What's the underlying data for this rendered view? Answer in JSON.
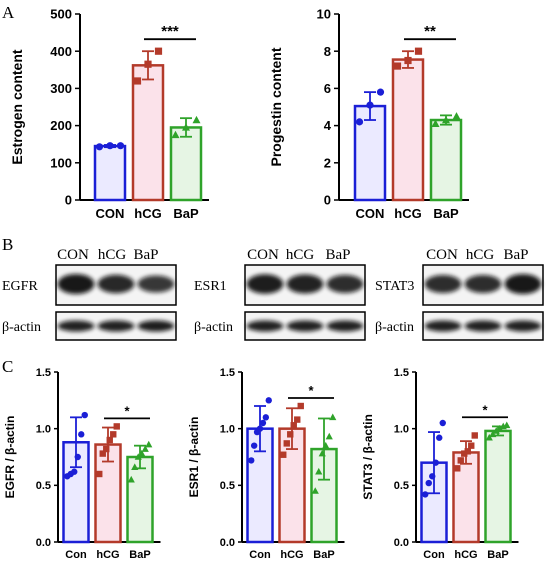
{
  "panel_labels": {
    "a": "A",
    "b": "B",
    "c": "C"
  },
  "colors": {
    "con": "#1b1fd6",
    "hcg": "#b33a2a",
    "bap": "#2fa32a",
    "con_fill": "#ebeaff",
    "hcg_fill": "#fbe2ea",
    "bap_fill": "#e6f5e4"
  },
  "chart_data": [
    {
      "id": "estrogen",
      "type": "bar",
      "categories": [
        "CON",
        "hCG",
        "BaP"
      ],
      "values": [
        145,
        362,
        195
      ],
      "errors": [
        3,
        38,
        25
      ],
      "points": [
        [
          143,
          146,
          146
        ],
        [
          320,
          365,
          400
        ],
        [
          175,
          195,
          215
        ]
      ],
      "ylabel": "Estrogen content",
      "yticks": [
        0,
        100,
        200,
        300,
        400,
        500
      ],
      "ylim": [
        0,
        500
      ],
      "significance": {
        "from": "hCG",
        "to": "BaP",
        "label": "***"
      },
      "point_shapes": [
        "circle",
        "square",
        "triangle"
      ],
      "grid": false
    },
    {
      "id": "progestin",
      "type": "bar",
      "categories": [
        "CON",
        "hCG",
        "BaP"
      ],
      "values": [
        5.05,
        7.55,
        4.3
      ],
      "errors": [
        0.75,
        0.45,
        0.25
      ],
      "points": [
        [
          4.2,
          5.1,
          5.8
        ],
        [
          7.2,
          7.5,
          8.0
        ],
        [
          4.1,
          4.3,
          4.5
        ]
      ],
      "ylabel": "Progestin content",
      "yticks": [
        0,
        2,
        4,
        6,
        8,
        10
      ],
      "ylim": [
        0,
        10
      ],
      "significance": {
        "from": "hCG",
        "to": "BaP",
        "label": "**"
      },
      "point_shapes": [
        "circle",
        "square",
        "triangle"
      ],
      "grid": false
    },
    {
      "id": "egfr",
      "type": "bar",
      "categories": [
        "Con",
        "hCG",
        "BaP"
      ],
      "values": [
        0.88,
        0.86,
        0.75
      ],
      "errors": [
        0.22,
        0.15,
        0.1
      ],
      "points": [
        [
          0.58,
          0.6,
          0.62,
          0.75,
          0.95,
          1.12
        ],
        [
          0.6,
          0.78,
          0.82,
          0.9,
          0.95,
          1.02
        ],
        [
          0.55,
          0.66,
          0.75,
          0.78,
          0.82,
          0.86
        ]
      ],
      "ylabel": "EGFR / β-actin",
      "yticks": [
        "0.0",
        "0.5",
        "1.0",
        "1.5"
      ],
      "ylim": [
        0,
        1.5
      ],
      "significance": {
        "from": "hCG",
        "to": "BaP",
        "label": "*"
      },
      "point_shapes": [
        "circle",
        "square",
        "triangle"
      ],
      "grid": false
    },
    {
      "id": "esr1",
      "type": "bar",
      "categories": [
        "Con",
        "hCG",
        "BaP"
      ],
      "values": [
        1.0,
        1.0,
        0.82
      ],
      "errors": [
        0.2,
        0.18,
        0.27
      ],
      "points": [
        [
          0.72,
          0.85,
          0.97,
          1.0,
          1.05,
          1.1,
          1.25
        ],
        [
          0.77,
          0.87,
          0.95,
          1.03,
          1.08,
          1.2
        ],
        [
          0.45,
          0.62,
          0.78,
          0.85,
          0.93,
          1.1
        ]
      ],
      "ylabel": "ESR1 / β-actin",
      "yticks": [
        "0.0",
        "0.5",
        "1.0",
        "1.5"
      ],
      "ylim": [
        0,
        1.5
      ],
      "significance": {
        "from": "hCG",
        "to": "BaP",
        "label": "*"
      },
      "point_shapes": [
        "circle",
        "square",
        "triangle"
      ],
      "grid": false
    },
    {
      "id": "stat3",
      "type": "bar",
      "categories": [
        "Con",
        "hCG",
        "BaP"
      ],
      "values": [
        0.7,
        0.79,
        0.98
      ],
      "errors": [
        0.27,
        0.1,
        0.04
      ],
      "points": [
        [
          0.42,
          0.52,
          0.58,
          0.7,
          0.92,
          1.05
        ],
        [
          0.65,
          0.72,
          0.78,
          0.8,
          0.85,
          0.94
        ],
        [
          0.92,
          0.95,
          0.98,
          1.0,
          1.02,
          1.03
        ]
      ],
      "ylabel": "STAT3 / β-actin",
      "yticks": [
        "0.0",
        "0.5",
        "1.0",
        "1.5"
      ],
      "ylim": [
        0,
        1.5
      ],
      "significance": {
        "from": "hCG",
        "to": "BaP",
        "label": "*"
      },
      "point_shapes": [
        "circle",
        "square",
        "triangle"
      ],
      "grid": false
    }
  ],
  "blots": [
    {
      "id": "egfr",
      "lanes": [
        "CON",
        "hCG",
        "BaP"
      ],
      "protein": "EGFR",
      "loading": "β-actin",
      "intensity": [
        1.0,
        0.85,
        0.7
      ],
      "loading_intensity": [
        0.9,
        0.9,
        0.95
      ]
    },
    {
      "id": "esr1",
      "lanes": [
        "CON",
        "hCG",
        "BaP"
      ],
      "protein": "ESR1",
      "loading": "β-actin",
      "intensity": [
        0.95,
        0.9,
        0.8
      ],
      "loading_intensity": [
        0.9,
        0.9,
        0.9
      ]
    },
    {
      "id": "stat3",
      "lanes": [
        "CON",
        "hCG",
        "BaP"
      ],
      "protein": "STAT3",
      "loading": "β-actin",
      "intensity": [
        0.8,
        0.8,
        1.0
      ],
      "loading_intensity": [
        0.9,
        0.9,
        0.9
      ]
    }
  ]
}
